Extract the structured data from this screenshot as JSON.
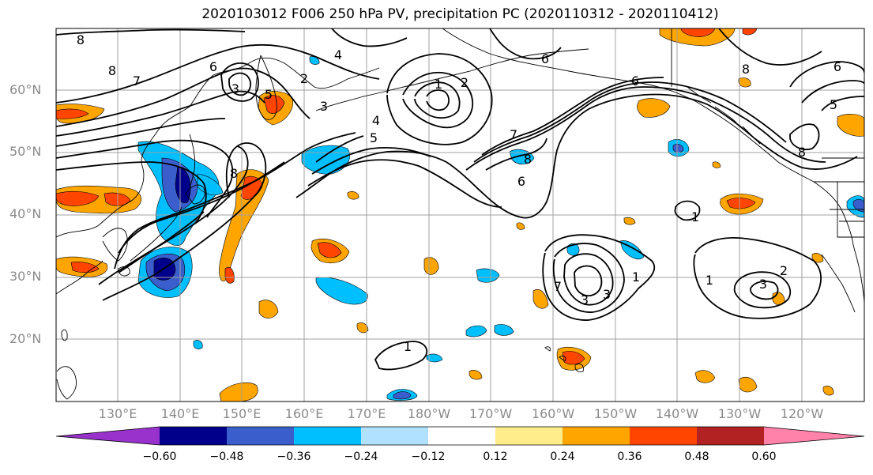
{
  "title": "2020103012 F006 250 hPa PV, precipitation PC (2020110312 - 2020110412)",
  "lat_labels": [
    "60°N",
    "50°N",
    "40°N",
    "30°N",
    "20°N"
  ],
  "lon_labels": [
    "130°E",
    "140°E",
    "150°E",
    "160°E",
    "170°E",
    "180°W",
    "170°W",
    "160°W",
    "150°W",
    "140°W",
    "130°W",
    "120°W"
  ],
  "colorbar": {
    "ticks": [
      "−0.60",
      "−0.48",
      "−0.36",
      "−0.24",
      "−0.12",
      "0.12",
      "0.24",
      "0.36",
      "0.48",
      "0.60"
    ],
    "colors": [
      "#9932cc",
      "#00008b",
      "#3a5fcd",
      "#00bfff",
      "#b0e2ff",
      "#ffffff",
      "#ffec8b",
      "#ffa500",
      "#ff4500",
      "#b22222",
      "#ff82ab"
    ]
  },
  "contour_labels": [
    {
      "text": "8"
    },
    {
      "text": "8"
    },
    {
      "text": "7"
    },
    {
      "text": "6"
    },
    {
      "text": "3"
    },
    {
      "text": "4"
    },
    {
      "text": "5"
    },
    {
      "text": "2"
    },
    {
      "text": "4"
    },
    {
      "text": "3"
    },
    {
      "text": "1"
    },
    {
      "text": "2"
    },
    {
      "text": "6"
    },
    {
      "text": "5"
    },
    {
      "text": "7"
    },
    {
      "text": "8"
    },
    {
      "text": "6"
    },
    {
      "text": "6"
    },
    {
      "text": "8"
    },
    {
      "text": "6"
    },
    {
      "text": "5"
    },
    {
      "text": "8"
    },
    {
      "text": "1"
    },
    {
      "text": "1"
    },
    {
      "text": "1"
    },
    {
      "text": "3"
    },
    {
      "text": "2"
    },
    {
      "text": "3"
    },
    {
      "text": "7"
    },
    {
      "text": "3"
    },
    {
      "text": "1"
    },
    {
      "text": "8"
    }
  ]
}
